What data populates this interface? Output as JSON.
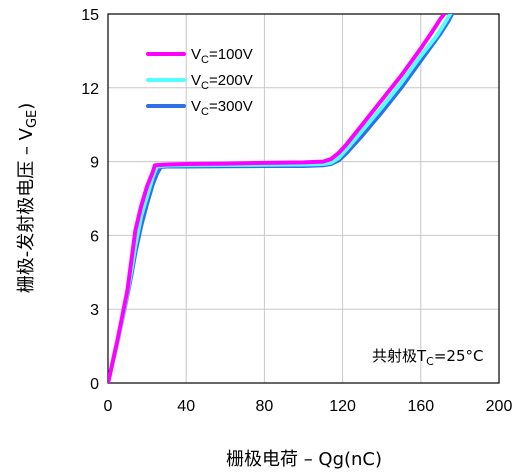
{
  "chart_data": {
    "type": "line",
    "xlabel": {
      "main": "栅极电荷 – Qg(nC)"
    },
    "ylabel": {
      "main": "栅极-发射极电压 – V",
      "sub": "GE",
      "tail": ")"
    },
    "xlim": [
      0,
      200
    ],
    "ylim": [
      0,
      15
    ],
    "xticks": [
      "0",
      "40",
      "80",
      "120",
      "160",
      "200"
    ],
    "yticks": [
      "0",
      "3",
      "6",
      "9",
      "12",
      "15"
    ],
    "grid": true,
    "legend_position": "top-left",
    "annotation": {
      "prefix": "共射极T",
      "sub": "C",
      "suffix": "=25°C"
    },
    "series": [
      {
        "name": "VC=100V",
        "label": {
          "main": "V",
          "sub": "C",
          "suffix": "=100V"
        },
        "color": "#ff00ff",
        "x": [
          0,
          5,
          10,
          12,
          14,
          17,
          20,
          23,
          24,
          30,
          40,
          60,
          80,
          100,
          110,
          114,
          118,
          122,
          130,
          140,
          150,
          160,
          166,
          170,
          172
        ],
        "y": [
          0,
          1.8,
          3.8,
          5.0,
          6.2,
          7.2,
          8.0,
          8.6,
          8.85,
          8.88,
          8.9,
          8.92,
          8.95,
          8.97,
          9.0,
          9.1,
          9.35,
          9.7,
          10.5,
          11.5,
          12.5,
          13.6,
          14.3,
          14.8,
          15.0
        ]
      },
      {
        "name": "VC=200V",
        "label": {
          "main": "V",
          "sub": "C",
          "suffix": "=200V"
        },
        "color": "#55ffff",
        "x": [
          0,
          5,
          10,
          12,
          14,
          17,
          20,
          23,
          25,
          30,
          40,
          60,
          80,
          100,
          110,
          114,
          118,
          122,
          130,
          140,
          150,
          160,
          168,
          172,
          175
        ],
        "y": [
          0,
          1.7,
          3.7,
          4.6,
          5.6,
          6.8,
          7.6,
          8.4,
          8.8,
          8.84,
          8.85,
          8.86,
          8.87,
          8.88,
          8.9,
          8.95,
          9.15,
          9.5,
          10.25,
          11.2,
          12.2,
          13.3,
          14.1,
          14.6,
          15.0
        ]
      },
      {
        "name": "VC=300V",
        "label": {
          "main": "V",
          "sub": "C",
          "suffix": "=300V"
        },
        "color": "#2f6fe8",
        "x": [
          0,
          5,
          10,
          12,
          14,
          17,
          20,
          23,
          25,
          27,
          30,
          40,
          60,
          80,
          100,
          110,
          114,
          118,
          122,
          130,
          140,
          150,
          160,
          170,
          174,
          176
        ],
        "y": [
          0,
          1.7,
          3.6,
          4.4,
          5.3,
          6.4,
          7.3,
          8.1,
          8.5,
          8.78,
          8.8,
          8.8,
          8.81,
          8.82,
          8.82,
          8.85,
          8.9,
          9.05,
          9.35,
          10.05,
          11.0,
          12.0,
          13.1,
          14.2,
          14.7,
          15.0
        ]
      }
    ]
  }
}
